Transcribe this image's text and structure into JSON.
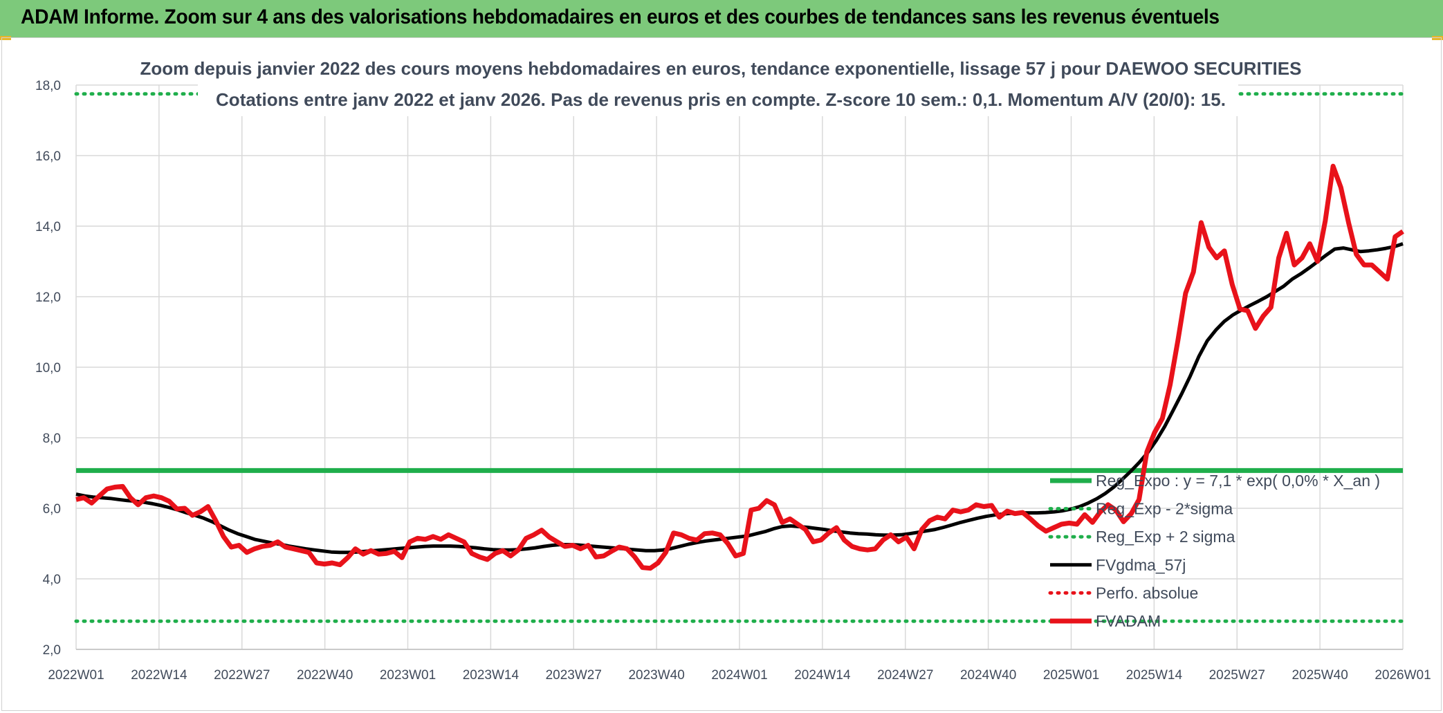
{
  "banner": {
    "title": "ADAM Informe. Zoom sur 4 ans des valorisations hebdomadaires en euros et des courbes de tendances sans les revenus éventuels"
  },
  "colors": {
    "banner_bg": "#7dc97b",
    "reg_expo": "#1fae4b",
    "sigma": "#1fae4b",
    "fvgdma": "#000000",
    "perfo": "#e8121a",
    "fvadam": "#e8121a",
    "grid": "#d9d9d9"
  },
  "chart_data": {
    "type": "line",
    "title_line1": "Zoom depuis janvier 2022 des cours moyens hebdomadaires en euros, tendance exponentielle, lissage 57 j pour DAEWOO SECURITIES",
    "title_line2": "Cotations entre janv 2022 et janv 2026. Pas de revenus pris en compte. Z-score 10 sem.: 0,1. Momentum A/V (20/0): 15.",
    "ylim": [
      2.0,
      18.0
    ],
    "yticks": [
      "2,0",
      "4,0",
      "6,0",
      "8,0",
      "10,0",
      "12,0",
      "14,0",
      "16,0",
      "18,0"
    ],
    "xticks": [
      "2022W01",
      "2022W14",
      "2022W27",
      "2022W40",
      "2023W01",
      "2023W14",
      "2023W27",
      "2023W40",
      "2024W01",
      "2024W14",
      "2024W27",
      "2024W40",
      "2025W01",
      "2025W14",
      "2025W27",
      "2025W40",
      "2026W01"
    ],
    "grid": true,
    "legend_position": "right",
    "series": [
      {
        "name": "Reg_Expo : y = 7,1 * exp( 0,0% * X_an )",
        "style": "solid-thick",
        "values": [
          7.07,
          7.07
        ]
      },
      {
        "name": "Reg_Exp - 2*sigma",
        "style": "dotted",
        "values": [
          2.8,
          2.8
        ]
      },
      {
        "name": "Reg_Exp + 2 sigma",
        "style": "dotted",
        "values": [
          17.75,
          17.75
        ]
      },
      {
        "name": "FVgdma_57j",
        "style": "solid",
        "values": [
          6.4,
          6.35,
          6.32,
          6.3,
          6.28,
          6.25,
          6.22,
          6.2,
          6.17,
          6.13,
          6.08,
          6.02,
          5.95,
          5.87,
          5.8,
          5.72,
          5.62,
          5.5,
          5.38,
          5.28,
          5.2,
          5.12,
          5.07,
          5.02,
          4.98,
          4.93,
          4.89,
          4.85,
          4.82,
          4.79,
          4.76,
          4.75,
          4.75,
          4.76,
          4.78,
          4.8,
          4.82,
          4.84,
          4.86,
          4.88,
          4.9,
          4.92,
          4.93,
          4.93,
          4.93,
          4.92,
          4.9,
          4.88,
          4.85,
          4.83,
          4.82,
          4.82,
          4.83,
          4.85,
          4.88,
          4.92,
          4.95,
          4.97,
          4.97,
          4.96,
          4.94,
          4.92,
          4.9,
          4.88,
          4.86,
          4.84,
          4.82,
          4.8,
          4.8,
          4.82,
          4.86,
          4.92,
          4.98,
          5.03,
          5.07,
          5.1,
          5.13,
          5.16,
          5.19,
          5.22,
          5.28,
          5.34,
          5.42,
          5.48,
          5.5,
          5.48,
          5.46,
          5.43,
          5.4,
          5.36,
          5.33,
          5.3,
          5.28,
          5.27,
          5.25,
          5.24,
          5.24,
          5.25,
          5.28,
          5.32,
          5.36,
          5.4,
          5.46,
          5.53,
          5.6,
          5.66,
          5.72,
          5.77,
          5.81,
          5.84,
          5.86,
          5.87,
          5.87,
          5.87,
          5.88,
          5.9,
          5.93,
          5.98,
          6.05,
          6.15,
          6.27,
          6.42,
          6.6,
          6.82,
          7.05,
          7.3,
          7.58,
          7.92,
          8.32,
          8.78,
          9.25,
          9.75,
          10.3,
          10.75,
          11.05,
          11.3,
          11.48,
          11.62,
          11.75,
          11.87,
          12.0,
          12.15,
          12.3,
          12.5,
          12.65,
          12.82,
          13.0,
          13.18,
          13.35,
          13.38,
          13.33,
          13.28,
          13.3,
          13.33,
          13.37,
          13.42,
          13.5
        ]
      },
      {
        "name": "Perfo. absolue",
        "style": "dotted",
        "values": []
      },
      {
        "name": "FVADAM",
        "style": "solid-thick",
        "values": [
          6.25,
          6.3,
          6.15,
          6.35,
          6.55,
          6.6,
          6.62,
          6.3,
          6.1,
          6.3,
          6.35,
          6.3,
          6.2,
          5.98,
          6.0,
          5.8,
          5.9,
          6.05,
          5.65,
          5.2,
          4.9,
          4.95,
          4.75,
          4.85,
          4.92,
          4.95,
          5.05,
          4.9,
          4.85,
          4.8,
          4.75,
          4.45,
          4.42,
          4.45,
          4.4,
          4.6,
          4.85,
          4.7,
          4.8,
          4.7,
          4.72,
          4.78,
          4.6,
          5.05,
          5.15,
          5.12,
          5.2,
          5.12,
          5.25,
          5.15,
          5.05,
          4.72,
          4.62,
          4.55,
          4.72,
          4.8,
          4.65,
          4.82,
          5.15,
          5.25,
          5.38,
          5.18,
          5.05,
          4.92,
          4.95,
          4.85,
          4.95,
          4.62,
          4.65,
          4.78,
          4.9,
          4.85,
          4.62,
          4.32,
          4.3,
          4.45,
          4.75,
          5.3,
          5.25,
          5.15,
          5.1,
          5.28,
          5.3,
          5.25,
          5.0,
          4.65,
          4.72,
          5.95,
          6.0,
          6.22,
          6.1,
          5.6,
          5.7,
          5.55,
          5.4,
          5.05,
          5.1,
          5.3,
          5.45,
          5.1,
          4.92,
          4.85,
          4.82,
          4.85,
          5.1,
          5.25,
          5.05,
          5.18,
          4.85,
          5.4,
          5.65,
          5.75,
          5.7,
          5.95,
          5.9,
          5.95,
          6.1,
          6.05,
          6.08,
          5.75,
          5.92,
          5.85,
          5.88,
          5.7,
          5.5,
          5.35,
          5.45,
          5.55,
          5.58,
          5.55,
          5.82,
          5.6,
          5.9,
          6.1,
          5.95,
          5.62,
          5.85,
          6.25,
          7.6,
          8.15,
          8.55,
          9.5,
          10.75,
          12.1,
          12.7,
          14.1,
          13.4,
          13.1,
          13.3,
          12.35,
          11.65,
          11.6,
          11.1,
          11.45,
          11.7,
          13.1,
          13.8,
          12.9,
          13.1,
          13.5,
          13.0,
          14.15,
          15.7,
          15.1,
          14.1,
          13.2,
          12.9,
          12.9,
          12.7,
          12.5,
          13.7,
          13.85
        ]
      }
    ]
  }
}
